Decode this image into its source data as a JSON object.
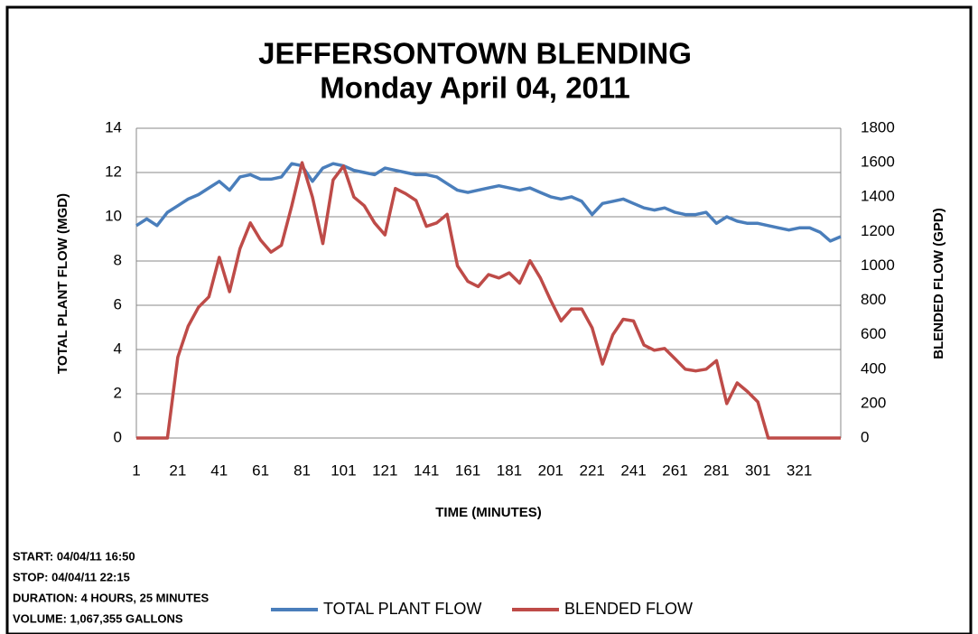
{
  "chart_data": {
    "type": "line",
    "title": "JEFFERSONTOWN BLENDING",
    "subtitle": "Monday April 04, 2011",
    "x_label": "TIME (MINUTES)",
    "y_label": "TOTAL PLANT FLOW (MGD)",
    "y2_label": "BLENDED FLOW (GPD)",
    "notes": [
      "START: 04/04/11 16:50",
      "STOP: 04/04/11 22:15",
      "DURATION: 4 HOURS, 25 MINUTES",
      "VOLUME: 1,067,355 GALLONS"
    ],
    "x": [
      1,
      6,
      11,
      16,
      21,
      26,
      31,
      36,
      41,
      46,
      51,
      56,
      61,
      66,
      71,
      76,
      81,
      86,
      91,
      96,
      101,
      106,
      111,
      116,
      121,
      126,
      131,
      136,
      141,
      146,
      151,
      156,
      161,
      166,
      171,
      176,
      181,
      186,
      191,
      196,
      201,
      206,
      211,
      216,
      221,
      226,
      231,
      236,
      241,
      246,
      251,
      256,
      261,
      266,
      271,
      276,
      281,
      286,
      291,
      296,
      301,
      306,
      311,
      316,
      321,
      326,
      331,
      336,
      341
    ],
    "xlim": [
      1,
      341
    ],
    "xticks": [
      1,
      21,
      41,
      61,
      81,
      101,
      121,
      141,
      161,
      181,
      201,
      221,
      241,
      261,
      281,
      301,
      321
    ],
    "ylim": [
      0,
      14
    ],
    "yticks": [
      0,
      2,
      4,
      6,
      8,
      10,
      12,
      14
    ],
    "y2lim": [
      0,
      1800
    ],
    "y2ticks": [
      0,
      200,
      400,
      600,
      800,
      1000,
      1200,
      1400,
      1600,
      1800
    ],
    "grid": true,
    "legend": "bottom",
    "series": [
      {
        "name": "TOTAL PLANT FLOW",
        "color": "#4a7ebb",
        "values": [
          9.6,
          9.9,
          9.6,
          10.2,
          10.5,
          10.8,
          11.0,
          11.3,
          11.6,
          11.2,
          11.8,
          11.9,
          11.7,
          11.7,
          11.8,
          12.4,
          12.3,
          11.6,
          12.2,
          12.4,
          12.3,
          12.1,
          12.0,
          11.9,
          12.2,
          12.1,
          12.0,
          11.9,
          11.9,
          11.8,
          11.5,
          11.2,
          11.1,
          11.2,
          11.3,
          11.4,
          11.3,
          11.2,
          11.3,
          11.1,
          10.9,
          10.8,
          10.9,
          10.7,
          10.1,
          10.6,
          10.7,
          10.8,
          10.6,
          10.4,
          10.3,
          10.4,
          10.2,
          10.1,
          10.1,
          10.2,
          9.7,
          10.0,
          9.8,
          9.7,
          9.7,
          9.6,
          9.5,
          9.4,
          9.5,
          9.5,
          9.3,
          8.9,
          9.1
        ]
      },
      {
        "name": "BLENDED FLOW",
        "color": "#be4b48",
        "axis": "y2",
        "values": [
          0,
          0,
          0,
          0,
          470,
          650,
          760,
          820,
          1050,
          850,
          1100,
          1250,
          1150,
          1080,
          1120,
          1350,
          1600,
          1400,
          1130,
          1500,
          1580,
          1400,
          1350,
          1250,
          1180,
          1450,
          1420,
          1380,
          1230,
          1250,
          1300,
          1000,
          910,
          880,
          950,
          930,
          960,
          900,
          1030,
          930,
          800,
          680,
          750,
          750,
          640,
          430,
          600,
          690,
          680,
          540,
          510,
          520,
          460,
          400,
          390,
          400,
          450,
          200,
          320,
          270,
          210,
          0,
          0,
          0,
          0,
          0,
          0,
          0,
          0
        ]
      }
    ]
  }
}
